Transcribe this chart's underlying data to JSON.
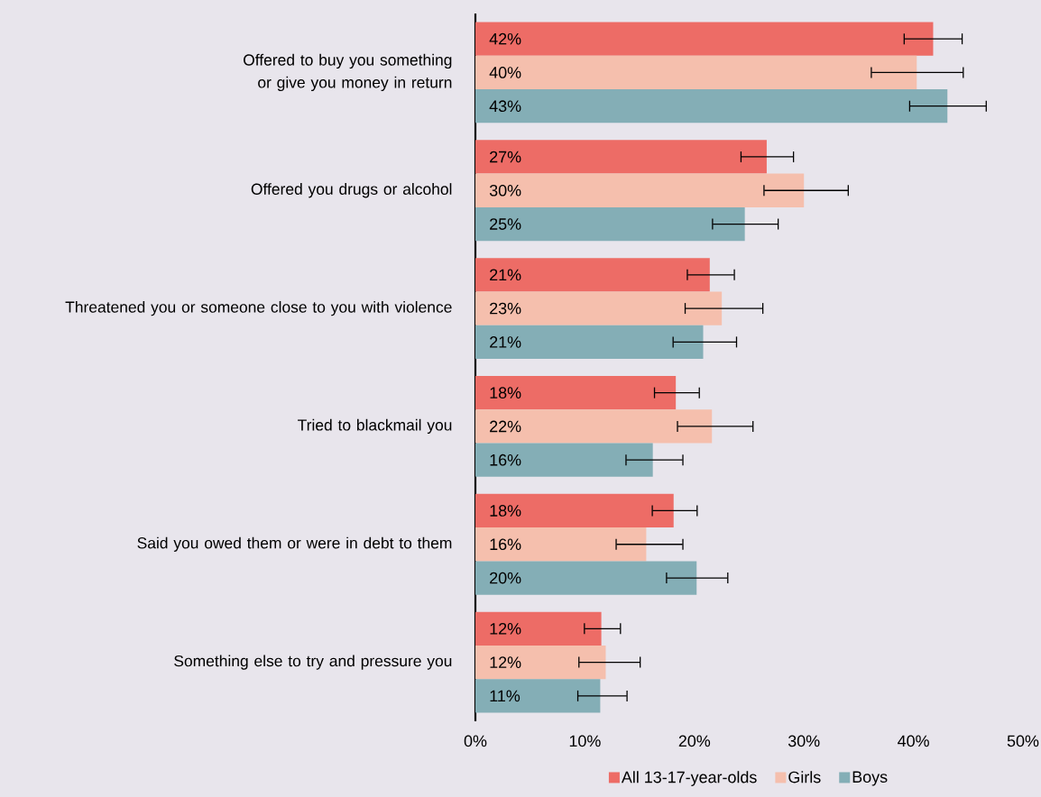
{
  "chart_data": {
    "type": "bar",
    "orientation": "horizontal",
    "categories": [
      "Offered to buy you something or give you money in return",
      "Offered you drugs or alcohol",
      "Threatened you or someone close to you with violence",
      "Tried to blackmail you",
      "Said you owed them or were in debt to them",
      "Something else to try and pressure you"
    ],
    "series": [
      {
        "name": "All 13-17-year-olds",
        "color": "#ed6c66",
        "values": [
          41.8,
          26.6,
          21.4,
          18.3,
          18.1,
          11.5
        ],
        "value_labels": [
          "42%",
          "27%",
          "21%",
          "18%",
          "18%",
          "12%"
        ],
        "errors": [
          [
            39.1,
            44.5
          ],
          [
            24.2,
            29.1
          ],
          [
            19.3,
            23.7
          ],
          [
            16.3,
            20.5
          ],
          [
            16.1,
            20.3
          ],
          [
            9.9,
            13.3
          ]
        ]
      },
      {
        "name": "Girls",
        "color": "#f5bfad",
        "values": [
          40.3,
          30.0,
          22.5,
          21.6,
          15.6,
          11.9
        ],
        "value_labels": [
          "40%",
          "30%",
          "23%",
          "22%",
          "16%",
          "12%"
        ],
        "errors": [
          [
            36.1,
            44.6
          ],
          [
            26.3,
            34.1
          ],
          [
            19.1,
            26.3
          ],
          [
            18.4,
            25.4
          ],
          [
            12.8,
            19.0
          ],
          [
            9.4,
            15.1
          ]
        ]
      },
      {
        "name": "Boys",
        "color": "#84aeb6",
        "values": [
          43.1,
          24.6,
          20.8,
          16.2,
          20.2,
          11.4
        ],
        "value_labels": [
          "43%",
          "25%",
          "21%",
          "16%",
          "20%",
          "11%"
        ],
        "errors": [
          [
            39.6,
            46.7
          ],
          [
            21.6,
            27.7
          ],
          [
            18.0,
            23.9
          ],
          [
            13.7,
            19.0
          ],
          [
            17.4,
            23.1
          ],
          [
            9.3,
            13.9
          ]
        ]
      }
    ],
    "xlim": [
      0,
      50
    ],
    "xticks": [
      {
        "value": 0,
        "label": "0%"
      },
      {
        "value": 10,
        "label": "10%"
      },
      {
        "value": 20,
        "label": "20%"
      },
      {
        "value": 30,
        "label": "30%"
      },
      {
        "value": 40,
        "label": "40%"
      },
      {
        "value": 50,
        "label": "50%"
      }
    ],
    "legend": "bottom"
  }
}
